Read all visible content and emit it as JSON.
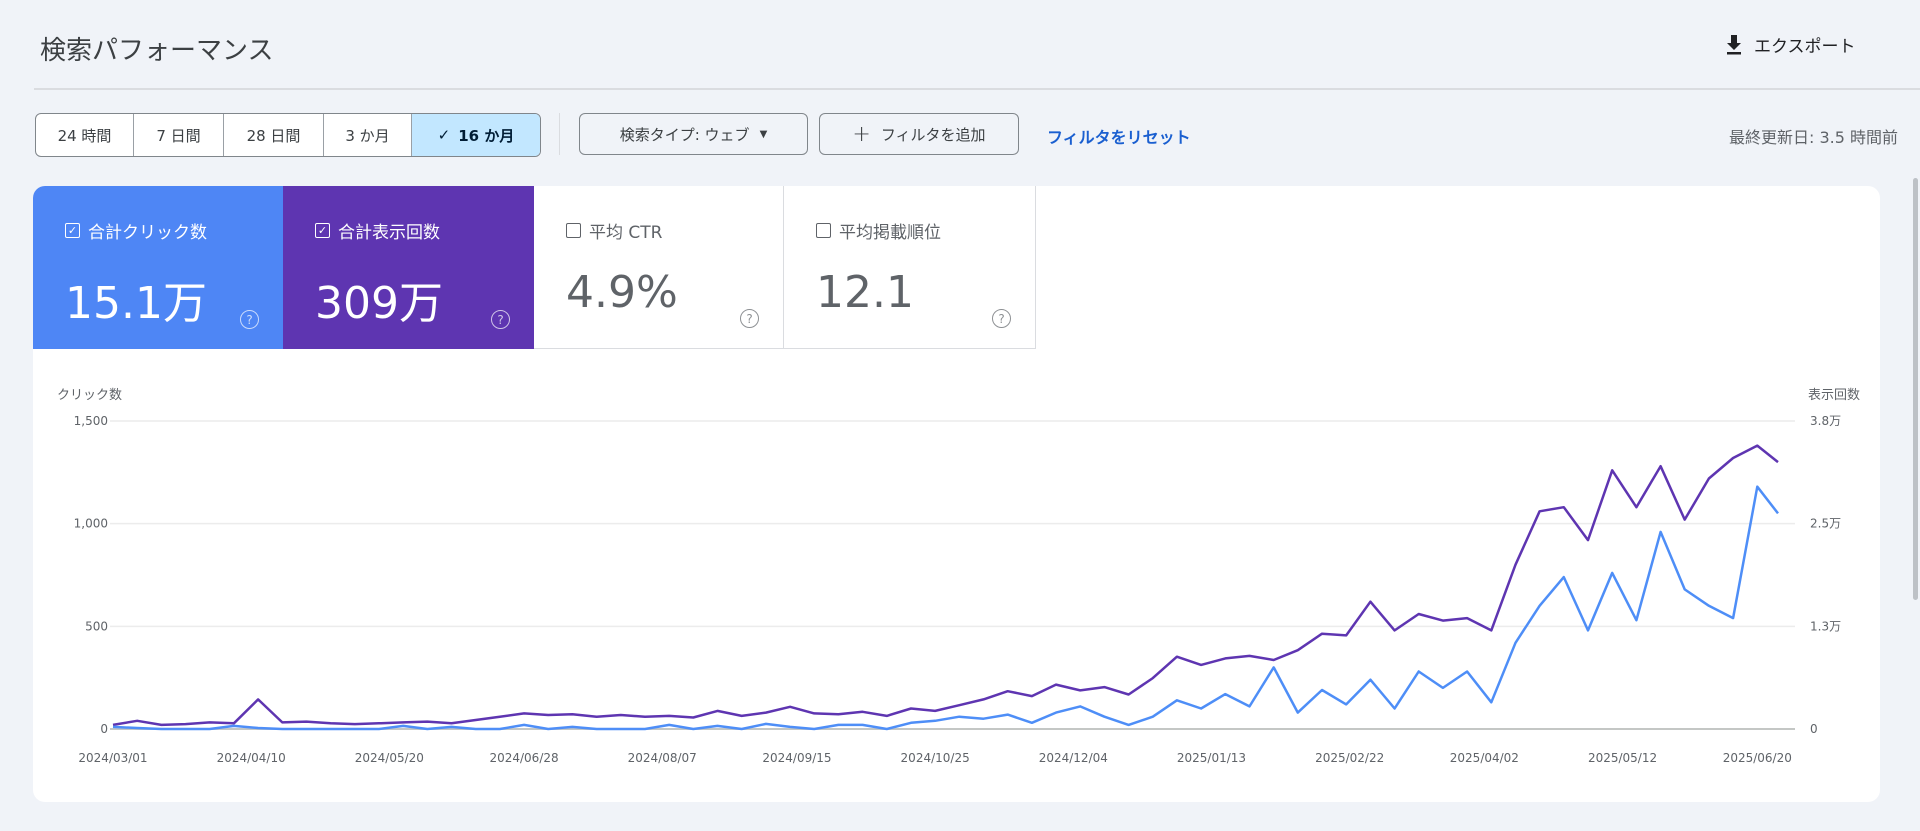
{
  "header": {
    "title": "検索パフォーマンス",
    "export_label": "エクスポート",
    "export_icon": "download-icon"
  },
  "toolbar": {
    "ranges": [
      {
        "label": "24 時間",
        "active": false
      },
      {
        "label": "7 日間",
        "active": false
      },
      {
        "label": "28 日間",
        "active": false
      },
      {
        "label": "3 か月",
        "active": false
      },
      {
        "label": "16 か月",
        "active": true
      }
    ],
    "search_type_label": "検索タイプ: ウェブ",
    "add_filter_label": "フィルタを追加",
    "reset_label": "フィルタをリセット",
    "last_updated": "最終更新日: 3.5 時間前"
  },
  "metrics": [
    {
      "label": "合計クリック数",
      "value": "15.1万",
      "checked": true,
      "color": "#4e86f5"
    },
    {
      "label": "合計表示回数",
      "value": "309万",
      "checked": true,
      "color": "#5e35b1"
    },
    {
      "label": "平均 CTR",
      "value": "4.9%",
      "checked": false
    },
    {
      "label": "平均掲載順位",
      "value": "12.1",
      "checked": false
    }
  ],
  "chart_data": {
    "type": "line",
    "left_axis_title": "クリック数",
    "right_axis_title": "表示回数",
    "left_ticks": [
      "0",
      "500",
      "1,000",
      "1,500"
    ],
    "right_ticks": [
      "0",
      "1.3万",
      "2.5万",
      "3.8万"
    ],
    "left_ylim": [
      0,
      1500
    ],
    "right_ylim": [
      0,
      37500
    ],
    "x_tick_labels": [
      "2024/03/01",
      "2024/04/10",
      "2024/05/20",
      "2024/06/28",
      "2024/08/07",
      "2024/09/15",
      "2024/10/25",
      "2024/12/04",
      "2025/01/13",
      "2025/02/22",
      "2025/04/02",
      "2025/05/12",
      "2025/06/20"
    ],
    "grid": true,
    "x": [
      "2024-03-01",
      "2024-03-08",
      "2024-03-15",
      "2024-03-22",
      "2024-03-29",
      "2024-04-05",
      "2024-04-12",
      "2024-04-19",
      "2024-04-26",
      "2024-05-03",
      "2024-05-10",
      "2024-05-17",
      "2024-05-24",
      "2024-05-31",
      "2024-06-07",
      "2024-06-14",
      "2024-06-21",
      "2024-06-28",
      "2024-07-05",
      "2024-07-12",
      "2024-07-19",
      "2024-07-26",
      "2024-08-02",
      "2024-08-09",
      "2024-08-16",
      "2024-08-23",
      "2024-08-30",
      "2024-09-06",
      "2024-09-13",
      "2024-09-20",
      "2024-09-27",
      "2024-10-04",
      "2024-10-11",
      "2024-10-18",
      "2024-10-25",
      "2024-11-01",
      "2024-11-08",
      "2024-11-15",
      "2024-11-22",
      "2024-11-29",
      "2024-12-06",
      "2024-12-13",
      "2024-12-20",
      "2024-12-27",
      "2025-01-03",
      "2025-01-10",
      "2025-01-17",
      "2025-01-24",
      "2025-01-31",
      "2025-02-07",
      "2025-02-14",
      "2025-02-21",
      "2025-02-28",
      "2025-03-07",
      "2025-03-14",
      "2025-03-21",
      "2025-03-28",
      "2025-04-04",
      "2025-04-11",
      "2025-04-18",
      "2025-04-25",
      "2025-05-02",
      "2025-05-09",
      "2025-05-16",
      "2025-05-23",
      "2025-05-30",
      "2025-06-06",
      "2025-06-13",
      "2025-06-20",
      "2025-06-26"
    ],
    "series": [
      {
        "name": "クリック数",
        "axis": "left",
        "color": "#4e8ef7",
        "values": [
          10,
          5,
          0,
          0,
          0,
          15,
          5,
          0,
          0,
          0,
          0,
          0,
          15,
          0,
          10,
          0,
          0,
          20,
          0,
          10,
          0,
          0,
          0,
          20,
          0,
          15,
          0,
          25,
          10,
          0,
          20,
          20,
          0,
          30,
          40,
          60,
          50,
          70,
          30,
          80,
          110,
          60,
          20,
          60,
          140,
          100,
          170,
          110,
          300,
          80,
          190,
          120,
          240,
          100,
          280,
          200,
          280,
          130,
          420,
          600,
          740,
          480,
          760,
          530,
          960,
          680,
          600,
          540,
          1180,
          1050
        ]
      },
      {
        "name": "表示回数",
        "axis": "right",
        "color": "#5e35b1",
        "values": [
          500,
          1000,
          500,
          600,
          800,
          700,
          3600,
          800,
          900,
          700,
          600,
          700,
          800,
          900,
          700,
          1100,
          1500,
          1900,
          1700,
          1800,
          1500,
          1700,
          1500,
          1600,
          1400,
          2200,
          1600,
          2000,
          2700,
          1900,
          1800,
          2100,
          1600,
          2500,
          2200,
          2900,
          3600,
          4600,
          4000,
          5400,
          4700,
          5100,
          4200,
          6200,
          8800,
          7800,
          8600,
          8900,
          8400,
          9600,
          11600,
          11400,
          15500,
          12000,
          14000,
          13200,
          13500,
          12000,
          20000,
          26500,
          27000,
          23000,
          31500,
          27000,
          32000,
          25500,
          30500,
          33000,
          34500,
          32500
        ]
      }
    ]
  }
}
